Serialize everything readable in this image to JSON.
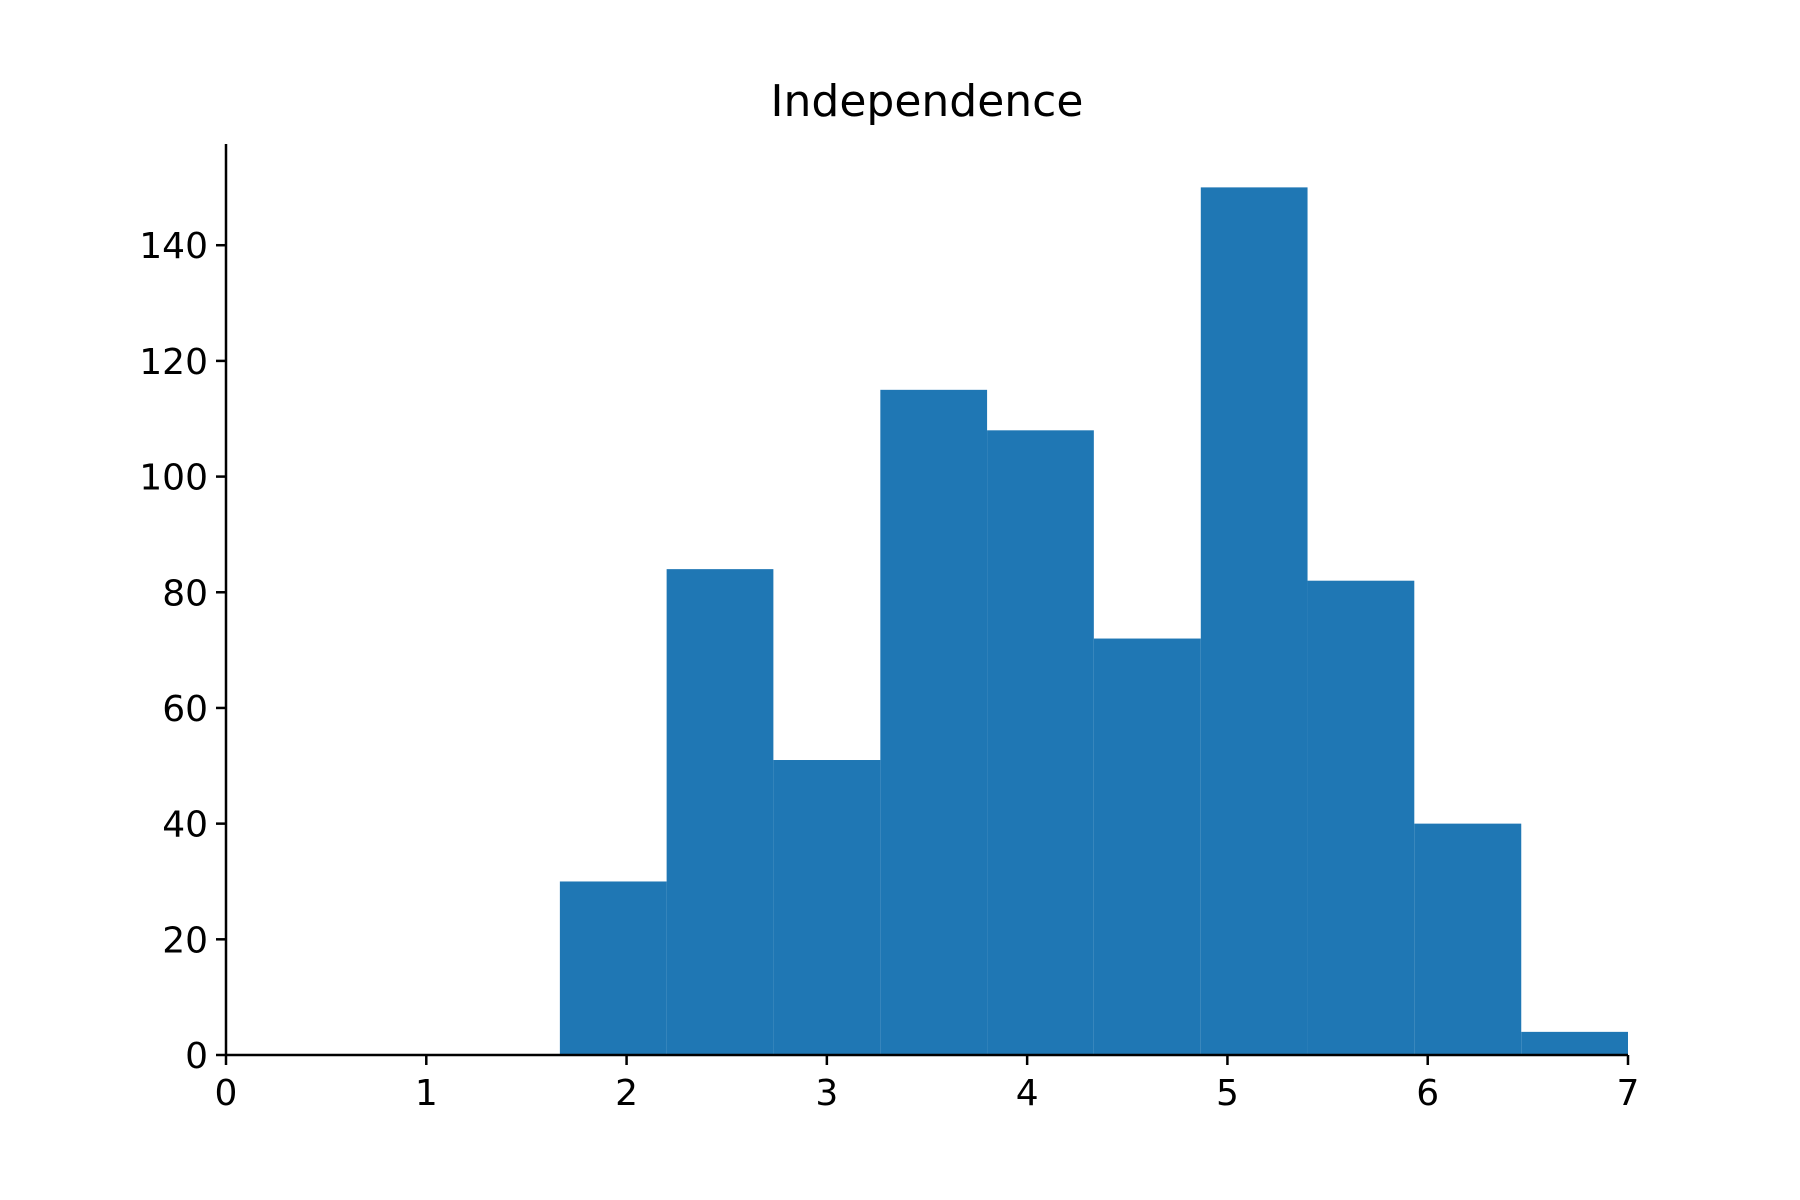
{
  "chart_data": {
    "type": "bar",
    "subtype": "histogram",
    "title": "Independence",
    "xlabel": "",
    "ylabel": "",
    "xlim": [
      0,
      7
    ],
    "ylim": [
      0,
      157.5
    ],
    "xticks": [
      0,
      1,
      2,
      3,
      4,
      5,
      6,
      7
    ],
    "yticks": [
      0,
      20,
      40,
      60,
      80,
      100,
      120,
      140
    ],
    "bin_edges": [
      1.667,
      2.2,
      2.733,
      3.267,
      3.8,
      4.333,
      4.867,
      5.4,
      5.933,
      6.467,
      7.0
    ],
    "values": [
      30,
      84,
      51,
      115,
      108,
      72,
      150,
      82,
      40,
      4
    ],
    "grid": false,
    "color": "#1f77b4"
  }
}
